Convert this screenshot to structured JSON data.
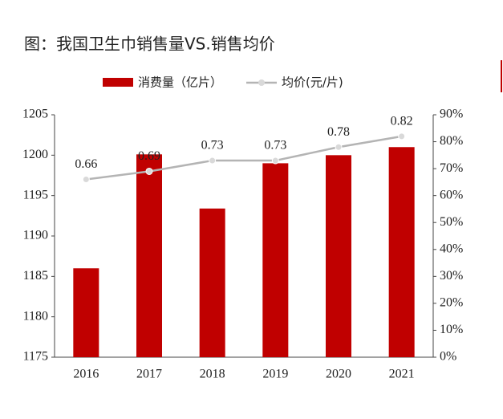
{
  "chart_data": {
    "type": "bar_line",
    "title": "图：我国卫生巾销售量VS.销售均价",
    "categories": [
      "2016",
      "2017",
      "2018",
      "2019",
      "2020",
      "2021"
    ],
    "series": [
      {
        "name": "消费量（亿片）",
        "color": "#c00000",
        "type": "bar",
        "values": [
          1186,
          1200.1,
          1193.4,
          1199,
          1200,
          1201
        ]
      },
      {
        "name": "均价(元/片)",
        "color": "#b4b4b4",
        "type": "line",
        "axis": "y2",
        "values": [
          0.66,
          0.69,
          0.73,
          0.73,
          0.78,
          0.82
        ]
      }
    ],
    "ylim": [
      1175,
      1205
    ],
    "yticks": [
      1175,
      1180,
      1185,
      1190,
      1195,
      1200,
      1205
    ],
    "y2lim": [
      0,
      0.9
    ],
    "y2ticks": [
      {
        "value": 0,
        "label": "0%"
      },
      {
        "value": 0.1,
        "label": "10%"
      },
      {
        "value": 0.2,
        "label": "20%"
      },
      {
        "value": 0.3,
        "label": "30%"
      },
      {
        "value": 0.4,
        "label": "40%"
      },
      {
        "value": 0.5,
        "label": "50%"
      },
      {
        "value": 0.6,
        "label": "60%"
      },
      {
        "value": 0.7,
        "label": "70%"
      },
      {
        "value": 0.8,
        "label": "80%"
      },
      {
        "value": 0.9,
        "label": "90%"
      }
    ],
    "grid": false
  }
}
